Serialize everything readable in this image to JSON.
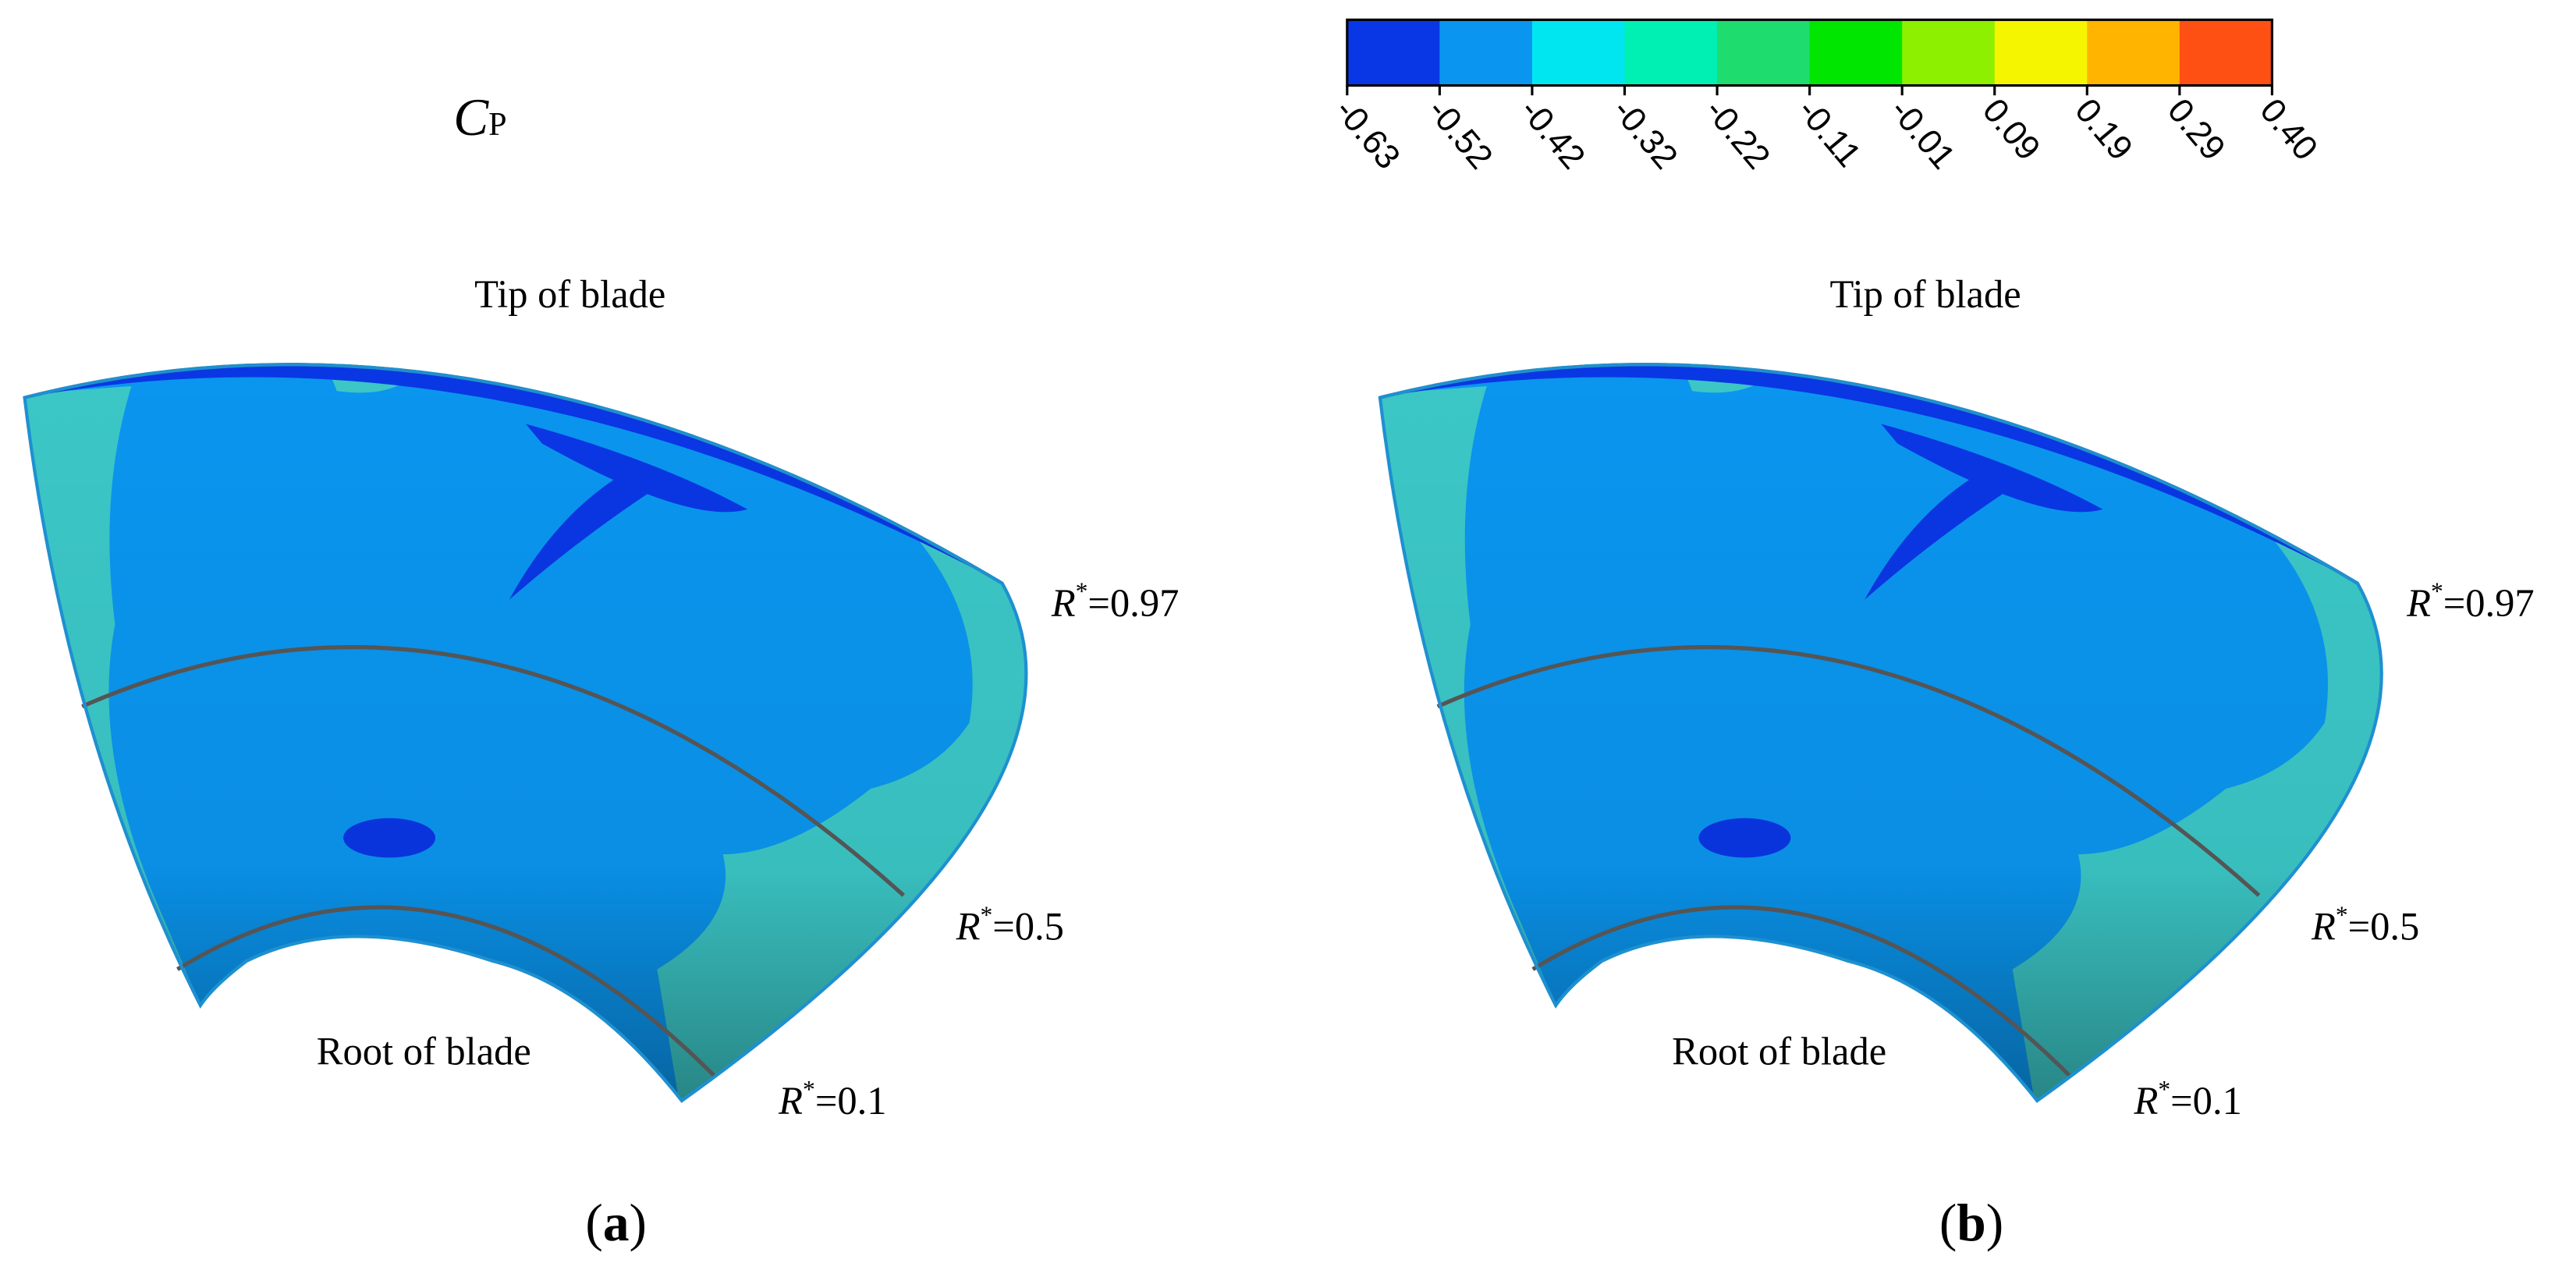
{
  "legend": {
    "symbol": "C",
    "subscript": "P",
    "colors": [
      "#0a37e6",
      "#0a96f0",
      "#00e6f0",
      "#00f0b4",
      "#1edc6e",
      "#00e600",
      "#8cf000",
      "#f5f500",
      "#ffb400",
      "#ff5014"
    ],
    "labels": [
      "-0.63",
      "-0.52",
      "-0.42",
      "-0.32",
      "-0.22",
      "-0.11",
      "-0.01",
      "0.09",
      "0.19",
      "0.29",
      "0.40"
    ]
  },
  "panels": [
    {
      "tip": "Tip of blade",
      "root": "Root of blade",
      "radii": [
        {
          "symbol": "R",
          "sup": "*",
          "text": "=0.97"
        },
        {
          "symbol": "R",
          "sup": "*",
          "text": "=0.5"
        },
        {
          "symbol": "R",
          "sup": "*",
          "text": "=0.1"
        }
      ],
      "caption": {
        "open": "(",
        "letter": "a",
        "close": ")"
      }
    },
    {
      "tip": "Tip of blade",
      "root": "Root of blade",
      "radii": [
        {
          "symbol": "R",
          "sup": "*",
          "text": "=0.97"
        },
        {
          "symbol": "R",
          "sup": "*",
          "text": "=0.5"
        },
        {
          "symbol": "R",
          "sup": "*",
          "text": "=0.1"
        }
      ],
      "caption": {
        "open": "(",
        "letter": "b",
        "close": ")"
      }
    }
  ]
}
